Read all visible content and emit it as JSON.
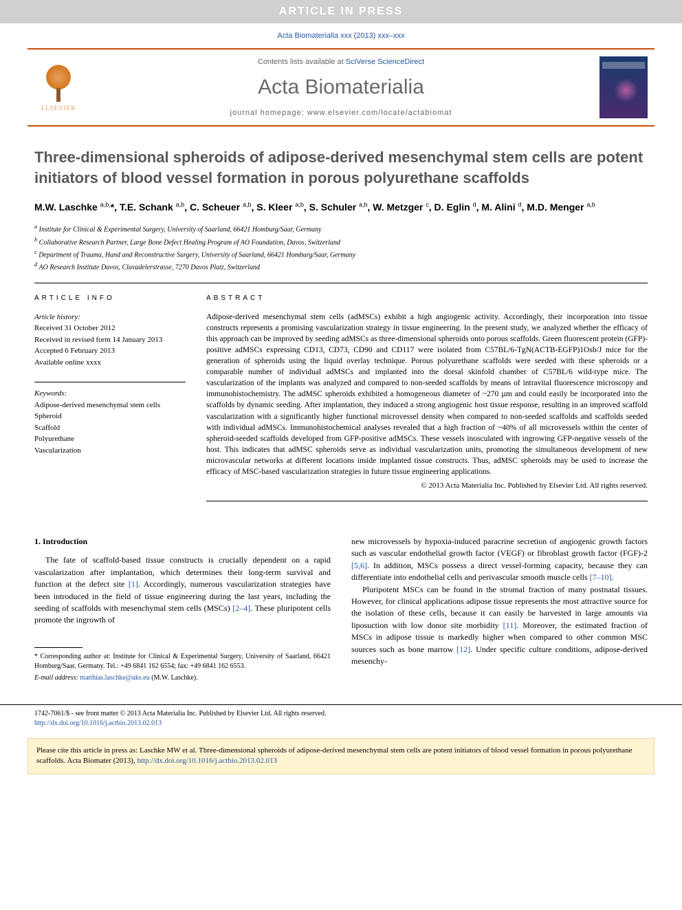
{
  "banner": "ARTICLE IN PRESS",
  "citation_top": "Acta Biomaterialia xxx (2013) xxx–xxx",
  "header": {
    "contents_prefix": "Contents lists available at ",
    "contents_link": "SciVerse ScienceDirect",
    "journal": "Acta Biomaterialia",
    "homepage_prefix": "journal homepage: ",
    "homepage_url": "www.elsevier.com/locate/actabiomat",
    "publisher_logo_text": "ELSEVIER",
    "cover_title": "Acta BIOMATERIALIA"
  },
  "title": "Three-dimensional spheroids of adipose-derived mesenchymal stem cells are potent initiators of blood vessel formation in porous polyurethane scaffolds",
  "authors_html": "M.W. Laschke <sup>a,b,</sup>*, T.E. Schank <sup>a,b</sup>, C. Scheuer <sup>a,b</sup>, S. Kleer <sup>a,b</sup>, S. Schuler <sup>a,b</sup>, W. Metzger <sup>c</sup>, D. Eglin <sup>d</sup>, M. Alini <sup>d</sup>, M.D. Menger <sup>a,b</sup>",
  "affiliations": {
    "a": "Institute for Clinical & Experimental Surgery, University of Saarland, 66421 Homburg/Saar, Germany",
    "b": "Collaborative Research Partner, Large Bone Defect Healing Program of AO Foundation, Davos, Switzerland",
    "c": "Department of Trauma, Hand and Reconstructive Surgery, University of Saarland, 66421 Homburg/Saar, Germany",
    "d": "AO Research Institute Davos, Clavadelerstrasse, 7270 Davos Platz, Switzerland"
  },
  "info": {
    "label": "ARTICLE INFO",
    "history_label": "Article history:",
    "received": "Received 31 October 2012",
    "revised": "Received in revised form 14 January 2013",
    "accepted": "Accepted 6 February 2013",
    "online": "Available online xxxx",
    "keywords_label": "Keywords:",
    "keywords": [
      "Adipose-derived mesenchymal stem cells",
      "Spheroid",
      "Scaffold",
      "Polyurethane",
      "Vascularization"
    ]
  },
  "abstract": {
    "label": "ABSTRACT",
    "text": "Adipose-derived mesenchymal stem cells (adMSCs) exhibit a high angiogenic activity. Accordingly, their incorporation into tissue constructs represents a promising vascularization strategy in tissue engineering. In the present study, we analyzed whether the efficacy of this approach can be improved by seeding adMSCs as three-dimensional spheroids onto porous scaffolds. Green fluorescent protein (GFP)-positive adMSCs expressing CD13, CD73, CD90 and CD117 were isolated from C57BL/6-TgN(ACTB-EGFP)1Osb/J mice for the generation of spheroids using the liquid overlay technique. Porous polyurethane scaffolds were seeded with these spheroids or a comparable number of individual adMSCs and implanted into the dorsal skinfold chamber of C57BL/6 wild-type mice. The vascularization of the implants was analyzed and compared to non-seeded scaffolds by means of intravital fluorescence microscopy and immunohistochemistry. The adMSC spheroids exhibited a homogeneous diameter of ~270 µm and could easily be incorporated into the scaffolds by dynamic seeding. After implantation, they induced a strong angiogenic host tissue response, resulting in an improved scaffold vascularization with a significantly higher functional microvessel density when compared to non-seeded scaffolds and scaffolds seeded with individual adMSCs. Immunohistochemical analyses revealed that a high fraction of ~40% of all microvessels within the center of spheroid-seeded scaffolds developed from GFP-positive adMSCs. These vessels inosculated with ingrowing GFP-negative vessels of the host. This indicates that adMSC spheroids serve as individual vascularization units, promoting the simultaneous development of new microvascular networks at different locations inside implanted tissue constructs. Thus, adMSC spheroids may be used to increase the efficacy of MSC-based vascularization strategies in future tissue engineering applications.",
    "copyright": "© 2013 Acta Materialia Inc. Published by Elsevier Ltd. All rights reserved."
  },
  "body": {
    "section1_heading": "1. Introduction",
    "para1_pre": "The fate of scaffold-based tissue constructs is crucially dependent on a rapid vascularization after implantation, which determines their long-term survival and function at the defect site ",
    "ref1": "[1]",
    "para1_post": ". Accordingly, numerous vascularization strategies have been introduced in the field of tissue engineering during the last years, including the seeding of scaffolds with mesenchymal stem cells (MSCs) ",
    "ref2": "[2–4]",
    "para1_end": ". These pluripotent cells promote the ingrowth of",
    "para2_pre": "new microvessels by hypoxia-induced paracrine secretion of angiogenic growth factors such as vascular endothelial growth factor (VEGF) or fibroblast growth factor (FGF)-2 ",
    "ref3": "[5,6]",
    "para2_mid": ". In addition, MSCs possess a direct vessel-forming capacity, because they can differentiate into endothelial cells and perivascular smooth muscle cells ",
    "ref4": "[7–10]",
    "para2_end": ".",
    "para3_pre": "Pluripotent MSCs can be found in the stromal fraction of many postnatal tissues. However, for clinical applications adipose tissue represents the most attractive source for the isolation of these cells, because it can easily be harvested in large amounts via liposuction with low donor site morbidity ",
    "ref5": "[11]",
    "para3_mid": ". Moreover, the estimated fraction of MSCs in adipose tissue is markedly higher when compared to other common MSC sources such as bone marrow ",
    "ref6": "[12]",
    "para3_end": ". Under specific culture conditions, adipose-derived mesenchy-"
  },
  "footnotes": {
    "corr_label": "* Corresponding author at: Institute for Clinical & Experimental Surgery, University of Saarland, 66421 Homburg/Saar, Germany. Tel.: +49 6841 162 6554; fax: +49 6841 162 6553.",
    "email_label": "E-mail address:",
    "email": "matthias.laschke@uks.eu",
    "email_who": "(M.W. Laschke)."
  },
  "footer": {
    "line1": "1742-7061/$ - see front matter © 2013 Acta Materialia Inc. Published by Elsevier Ltd. All rights reserved.",
    "doi": "http://dx.doi.org/10.1016/j.actbio.2013.02.013"
  },
  "citebox": {
    "text_pre": "Please cite this article in press as: Laschke MW et al. Three-dimensional spheroids of adipose-derived mesenchymal stem cells are potent initiators of blood vessel formation in porous polyurethane scaffolds. Acta Biomater (2013), ",
    "doi": "http://dx.doi.org/10.1016/j.actbio.2013.02.013"
  },
  "colors": {
    "accent": "#c94f0a",
    "link": "#2456a3",
    "banner_bg": "#d0d0d0",
    "title_gray": "#58595b",
    "citebox_bg": "#fef4d2"
  }
}
